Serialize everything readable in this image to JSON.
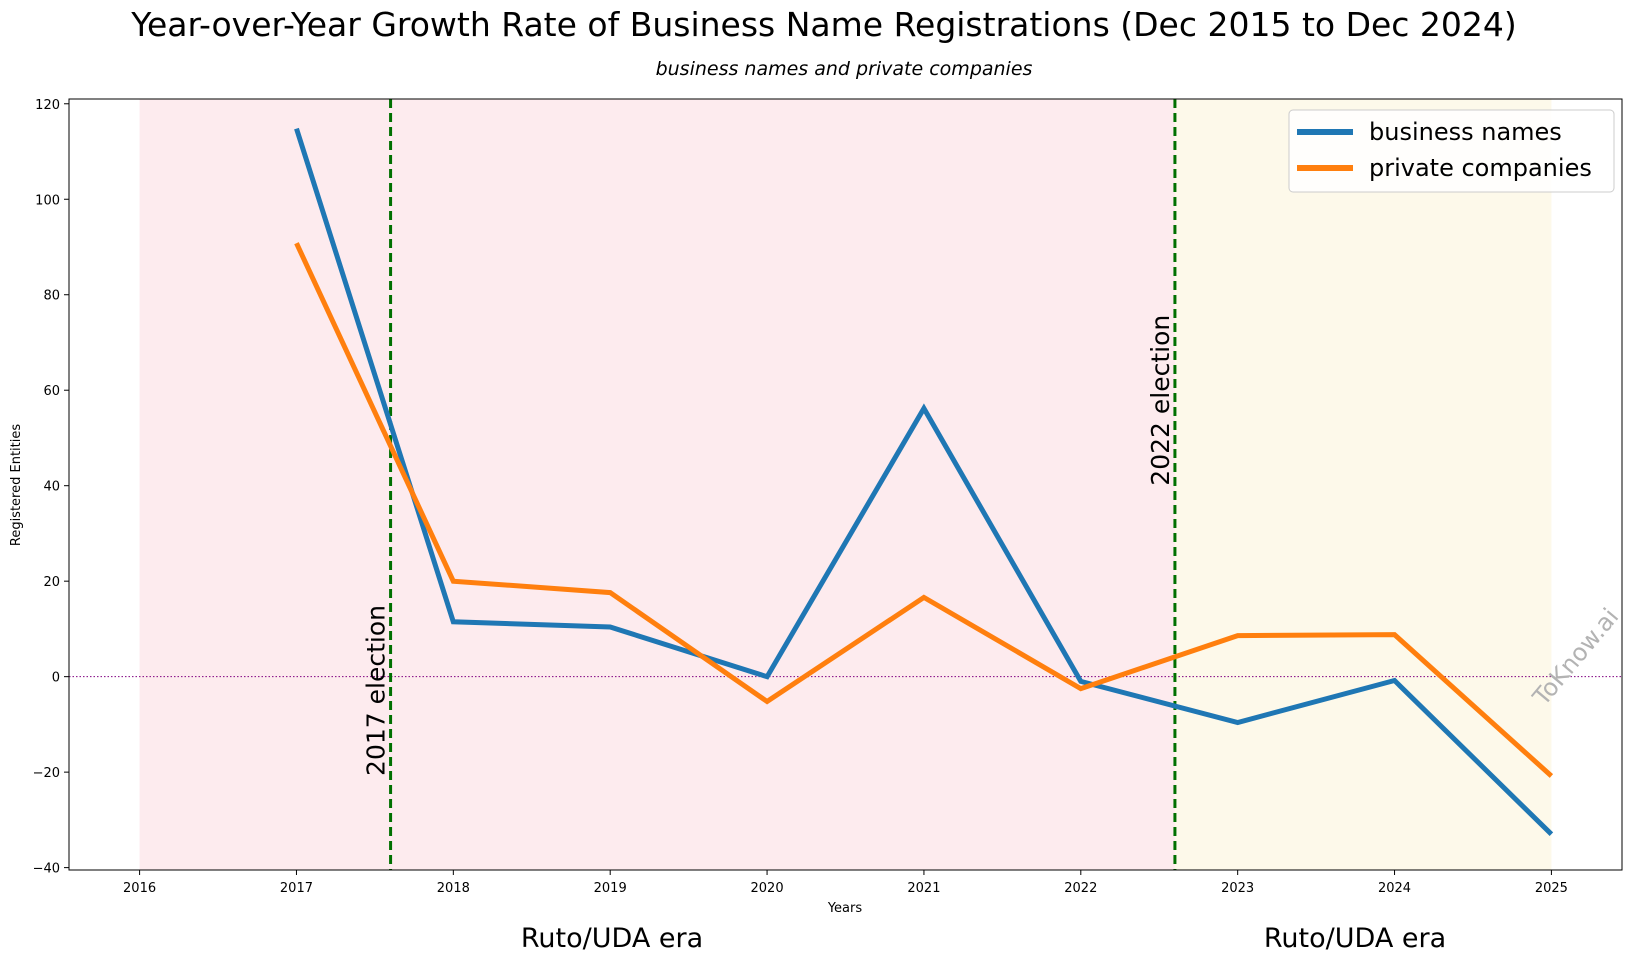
{
  "chart_data": {
    "type": "line",
    "title": "Year-over-Year Growth Rate of Business Name Registrations (Dec 2015 to Dec 2024)",
    "subtitle": "business names and private companies",
    "xlabel": "Years",
    "ylabel": "Registered Entities",
    "x_ticks": [
      "2016",
      "2017",
      "2018",
      "2019",
      "2020",
      "2021",
      "2022",
      "2023",
      "2024",
      "2025"
    ],
    "y_ticks": [
      -40,
      -20,
      0,
      20,
      40,
      60,
      80,
      100,
      120
    ],
    "xlim": [
      2015.55,
      2025.45
    ],
    "ylim": [
      -40.5,
      121
    ],
    "x": [
      2017,
      2018,
      2019,
      2020,
      2021,
      2022,
      2023,
      2024,
      2025
    ],
    "series": [
      {
        "name": "business names",
        "color": "#1f77b4",
        "values": [
          114.8,
          11.5,
          10.4,
          0.0,
          56.2,
          -1.0,
          -9.6,
          -0.8,
          -33.0
        ]
      },
      {
        "name": "private companies",
        "color": "#ff7f0e",
        "values": [
          90.8,
          20.0,
          17.6,
          -5.2,
          16.6,
          -2.5,
          8.6,
          8.8,
          -20.8
        ]
      }
    ],
    "reference_lines": [
      {
        "axis": "y",
        "value": 0,
        "color": "#800080",
        "style": "dotted"
      },
      {
        "axis": "x",
        "value": 2017.6,
        "color": "#007000",
        "style": "dashed",
        "label": "2017 election"
      },
      {
        "axis": "x",
        "value": 2022.6,
        "color": "#007000",
        "style": "dashed",
        "label": "2022 election"
      }
    ],
    "shaded_regions": [
      {
        "from": 2016,
        "to": 2022.6,
        "color": "#fdebee",
        "label": "Ruto/UDA era"
      },
      {
        "from": 2022.6,
        "to": 2025,
        "color": "#fdf9ea",
        "label": "Ruto/UDA era"
      }
    ],
    "legend_position": "top-right",
    "grid": false,
    "watermark": "ToKnow.ai"
  }
}
